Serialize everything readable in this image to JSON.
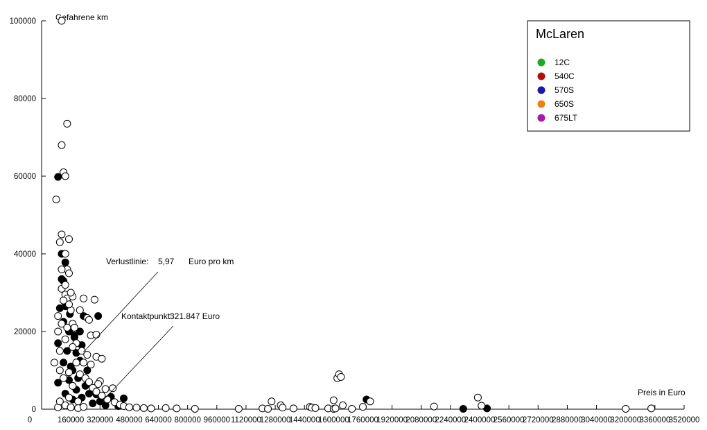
{
  "chart_data": {
    "type": "scatter",
    "ylabel": "Gefahrene km",
    "xlabel": "Preis in Euro",
    "xlim": [
      0,
      3520000
    ],
    "ylim": [
      0,
      100000
    ],
    "x_ticks": [
      "0",
      "160000",
      "320000",
      "480000",
      "640000",
      "800000",
      "960000",
      "1120000",
      "1280000",
      "1440000",
      "1600000",
      "1760000",
      "1920000",
      "2080000",
      "2240000",
      "2400000",
      "2560000",
      "2720000",
      "2880000",
      "3040000",
      "3200000",
      "3360000",
      "3520000"
    ],
    "y_ticks": [
      "0",
      "20000",
      "40000",
      "60000",
      "80000",
      "100000"
    ],
    "legend": {
      "title": "McLaren",
      "placement": "top-right",
      "items": [
        {
          "name": "12C",
          "color": "#22a522"
        },
        {
          "name": "540C",
          "color": "#b01010"
        },
        {
          "name": "570S",
          "color": "#1a1aa8"
        },
        {
          "name": "650S",
          "color": "#f08010"
        },
        {
          "name": "675LT",
          "color": "#a81aa8"
        }
      ]
    },
    "annotations": {
      "verlust_label": "Verlustlinie:",
      "verlust_value": "5,97",
      "verlust_unit": "Euro pro km",
      "kontakt_label": "Kontaktpunkt:",
      "kontakt_value": "321.847 Euro"
    },
    "series": [
      {
        "style": "filled",
        "points": [
          [
            90000,
            59800
          ],
          [
            110000,
            40000
          ],
          [
            130000,
            37800
          ],
          [
            110000,
            33500
          ],
          [
            120000,
            33000
          ],
          [
            140000,
            27500
          ],
          [
            100000,
            26000
          ],
          [
            130000,
            26500
          ],
          [
            155000,
            24500
          ],
          [
            230000,
            24000
          ],
          [
            310000,
            24000
          ],
          [
            150000,
            20000
          ],
          [
            180000,
            19000
          ],
          [
            90000,
            17000
          ],
          [
            180000,
            18500
          ],
          [
            190000,
            14500
          ],
          [
            210000,
            12500
          ],
          [
            90000,
            6800
          ],
          [
            150000,
            7500
          ],
          [
            220000,
            16500
          ],
          [
            260000,
            4000
          ],
          [
            300000,
            3800
          ],
          [
            380000,
            3200
          ],
          [
            450000,
            2800
          ],
          [
            320000,
            2000
          ],
          [
            1780000,
            2500
          ],
          [
            2310000,
            100
          ],
          [
            2440000,
            200
          ],
          [
            120000,
            22500
          ],
          [
            140000,
            15000
          ],
          [
            170000,
            10000
          ],
          [
            200000,
            8000
          ],
          [
            240000,
            6000
          ],
          [
            120000,
            12000
          ],
          [
            160000,
            11000
          ],
          [
            190000,
            5000
          ],
          [
            220000,
            3000
          ],
          [
            280000,
            1500
          ],
          [
            350000,
            1000
          ],
          [
            420000,
            800
          ],
          [
            130000,
            4000
          ],
          [
            170000,
            2500
          ],
          [
            250000,
            10000
          ],
          [
            210000,
            20000
          ]
        ]
      },
      {
        "style": "open",
        "points": [
          [
            110000,
            100000
          ],
          [
            140000,
            73500
          ],
          [
            110000,
            68000
          ],
          [
            120000,
            61000
          ],
          [
            130000,
            60000
          ],
          [
            80000,
            54000
          ],
          [
            110000,
            45000
          ],
          [
            150000,
            43800
          ],
          [
            100000,
            43000
          ],
          [
            130000,
            40000
          ],
          [
            140000,
            36000
          ],
          [
            110000,
            31000
          ],
          [
            150000,
            35000
          ],
          [
            130000,
            29500
          ],
          [
            140000,
            28500
          ],
          [
            170000,
            29000
          ],
          [
            160000,
            25500
          ],
          [
            170000,
            22000
          ],
          [
            180000,
            21000
          ],
          [
            210000,
            25500
          ],
          [
            230000,
            28500
          ],
          [
            290000,
            28200
          ],
          [
            270000,
            19000
          ],
          [
            300000,
            19200
          ],
          [
            250000,
            23500
          ],
          [
            260000,
            23000
          ],
          [
            190000,
            17000
          ],
          [
            220000,
            15000
          ],
          [
            250000,
            14000
          ],
          [
            300000,
            13500
          ],
          [
            330000,
            13000
          ],
          [
            230000,
            12000
          ],
          [
            270000,
            11500
          ],
          [
            320000,
            7200
          ],
          [
            310000,
            6500
          ],
          [
            350000,
            5200
          ],
          [
            390000,
            5400
          ],
          [
            330000,
            3500
          ],
          [
            360000,
            2500
          ],
          [
            400000,
            1800
          ],
          [
            430000,
            1200
          ],
          [
            450000,
            800
          ],
          [
            480000,
            500
          ],
          [
            520000,
            400
          ],
          [
            560000,
            300
          ],
          [
            600000,
            200
          ],
          [
            680000,
            300
          ],
          [
            740000,
            200
          ],
          [
            840000,
            100
          ],
          [
            1080000,
            100
          ],
          [
            1210000,
            200
          ],
          [
            1240000,
            100
          ],
          [
            1260000,
            2000
          ],
          [
            1310000,
            1000
          ],
          [
            1320000,
            400
          ],
          [
            1380000,
            200
          ],
          [
            1470000,
            600
          ],
          [
            1480000,
            400
          ],
          [
            1500000,
            300
          ],
          [
            1570000,
            200
          ],
          [
            1600000,
            2300
          ],
          [
            1620000,
            8000
          ],
          [
            1630000,
            9000
          ],
          [
            1640000,
            8300
          ],
          [
            1650000,
            1000
          ],
          [
            1600000,
            100
          ],
          [
            1610000,
            200
          ],
          [
            1700000,
            100
          ],
          [
            1760000,
            600
          ],
          [
            1800000,
            2000
          ],
          [
            2150000,
            700
          ],
          [
            2390000,
            3000
          ],
          [
            2410000,
            900
          ],
          [
            3200000,
            100
          ],
          [
            3340000,
            200
          ],
          [
            70000,
            12000
          ],
          [
            90000,
            20000
          ],
          [
            100000,
            15000
          ],
          [
            120000,
            8000
          ],
          [
            150000,
            3000
          ],
          [
            90000,
            500
          ],
          [
            100000,
            2000
          ],
          [
            130000,
            1000
          ],
          [
            160000,
            500
          ],
          [
            200000,
            300
          ],
          [
            230000,
            600
          ],
          [
            110000,
            36000
          ],
          [
            130000,
            32000
          ],
          [
            160000,
            30000
          ],
          [
            120000,
            28000
          ],
          [
            150000,
            27000
          ],
          [
            90000,
            24000
          ],
          [
            110000,
            22000
          ],
          [
            140000,
            21000
          ],
          [
            170000,
            16000
          ],
          [
            190000,
            12000
          ],
          [
            210000,
            9000
          ],
          [
            240000,
            8000
          ],
          [
            260000,
            7000
          ],
          [
            280000,
            5500
          ],
          [
            300000,
            4500
          ],
          [
            170000,
            6000
          ],
          [
            150000,
            9500
          ],
          [
            130000,
            18000
          ],
          [
            100000,
            10000
          ],
          [
            200000,
            2000
          ]
        ]
      }
    ]
  }
}
